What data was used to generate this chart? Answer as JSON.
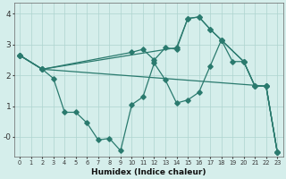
{
  "xlabel": "Humidex (Indice chaleur)",
  "xlim": [
    -0.5,
    23.5
  ],
  "ylim": [
    -0.65,
    4.35
  ],
  "yticks": [
    0,
    1,
    2,
    3,
    4
  ],
  "ytick_labels": [
    "-0",
    "1",
    "2",
    "3",
    "4"
  ],
  "xticks": [
    0,
    1,
    2,
    3,
    4,
    5,
    6,
    7,
    8,
    9,
    10,
    11,
    12,
    13,
    14,
    15,
    16,
    17,
    18,
    19,
    20,
    21,
    22,
    23
  ],
  "color": "#2a7a6e",
  "bg_color": "#d5eeeb",
  "grid_color": "#aed4cf",
  "line1_x": [
    0,
    2,
    3,
    4,
    5,
    6,
    7,
    8,
    9,
    10,
    11,
    12,
    13,
    14,
    15,
    16,
    17,
    18,
    19,
    20,
    21,
    22,
    23
  ],
  "line1_y": [
    2.65,
    2.2,
    1.9,
    0.8,
    0.8,
    0.45,
    -0.1,
    -0.05,
    -0.45,
    1.05,
    1.3,
    2.4,
    1.85,
    1.1,
    1.2,
    1.45,
    2.3,
    3.15,
    2.45,
    2.45,
    1.65,
    1.65,
    -0.5
  ],
  "line2_x": [
    0,
    2,
    22,
    23
  ],
  "line2_y": [
    2.65,
    2.2,
    1.65,
    -0.5
  ],
  "line3_x": [
    0,
    2,
    14,
    15,
    16,
    17,
    18,
    20,
    21,
    22,
    23
  ],
  "line3_y": [
    2.65,
    2.2,
    2.9,
    3.85,
    3.9,
    3.5,
    3.15,
    2.45,
    1.65,
    1.65,
    -0.5
  ],
  "line4_x": [
    0,
    2,
    10,
    11,
    12,
    13,
    14,
    15,
    16,
    17,
    18,
    20,
    21,
    22,
    23
  ],
  "line4_y": [
    2.65,
    2.2,
    2.75,
    2.85,
    2.5,
    2.9,
    2.85,
    3.85,
    3.9,
    3.5,
    3.15,
    2.45,
    1.65,
    1.65,
    -0.5
  ]
}
